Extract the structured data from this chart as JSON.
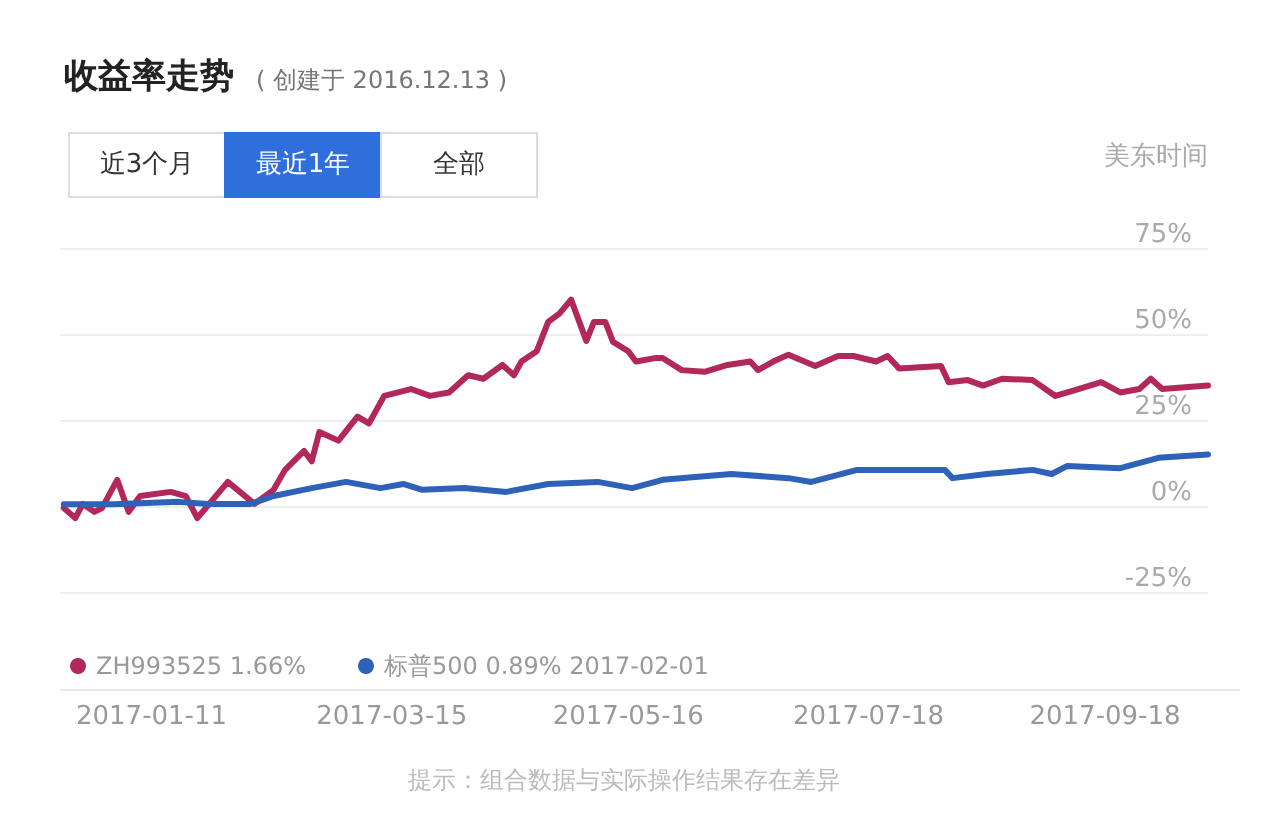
{
  "chart_data": {
    "type": "line",
    "title": "收益率走势",
    "subtitle": "( 创建于 2016.12.13 )",
    "annotations": [
      "近3个月",
      "最近1年",
      "全部",
      "美东时间",
      "提示：组合数据与实际操作结果存在差异"
    ],
    "xlim": [
      "2016-12-18",
      "2017-10-15"
    ],
    "xticks": [
      "2017-01-11",
      "2017-03-15",
      "2017-05-16",
      "2017-07-18",
      "2017-09-18"
    ],
    "ylim": [
      -25,
      75
    ],
    "yticks": [
      {
        "value": -25,
        "label": "-25%"
      },
      {
        "value": 0,
        "label": "0%"
      },
      {
        "value": 25,
        "label": "25%"
      },
      {
        "value": 50,
        "label": "50%"
      },
      {
        "value": 75,
        "label": "75%"
      }
    ],
    "grid": "y",
    "legend": "bottom",
    "marker": "none",
    "line_style": "solid",
    "series": [
      {
        "name": "ZH993525 1.66%",
        "color": "#b3285a",
        "x": [
          "2016-12-19",
          "2016-12-22",
          "2016-12-24",
          "2016-12-27",
          "2016-12-29",
          "2017-01-02",
          "2017-01-05",
          "2017-01-08",
          "2017-01-16",
          "2017-01-20",
          "2017-01-23",
          "2017-01-31",
          "2017-02-07",
          "2017-02-12",
          "2017-02-15",
          "2017-02-20",
          "2017-02-22",
          "2017-02-24",
          "2017-03-01",
          "2017-03-06",
          "2017-03-09",
          "2017-03-13",
          "2017-03-20",
          "2017-03-25",
          "2017-03-30",
          "2017-04-04",
          "2017-04-08",
          "2017-04-13",
          "2017-04-16",
          "2017-04-18",
          "2017-04-22",
          "2017-04-25",
          "2017-04-28",
          "2017-05-01",
          "2017-05-05",
          "2017-05-07",
          "2017-05-10",
          "2017-05-12",
          "2017-05-16",
          "2017-05-18",
          "2017-05-23",
          "2017-05-25",
          "2017-05-30",
          "2017-06-05",
          "2017-06-11",
          "2017-06-17",
          "2017-06-19",
          "2017-06-23",
          "2017-06-27",
          "2017-07-04",
          "2017-07-10",
          "2017-07-14",
          "2017-07-20",
          "2017-07-23",
          "2017-07-26",
          "2017-08-06",
          "2017-08-08",
          "2017-08-13",
          "2017-08-17",
          "2017-08-22",
          "2017-08-30",
          "2017-09-05",
          "2017-09-11",
          "2017-09-17",
          "2017-09-22",
          "2017-09-27",
          "2017-09-30",
          "2017-10-03",
          "2017-10-15"
        ],
        "values": [
          -0.6,
          -3.5,
          0.6,
          -1.7,
          -0.6,
          7.6,
          -1.7,
          2.9,
          4.1,
          2.9,
          -3.5,
          7,
          0.6,
          4.7,
          10.5,
          16,
          13,
          21.5,
          19,
          26,
          24,
          32,
          34,
          32,
          33,
          38,
          37,
          41,
          38,
          42,
          45,
          53.5,
          56,
          60,
          48,
          53.5,
          53.5,
          47.7,
          45,
          42,
          43,
          43,
          39.5,
          39,
          41,
          42,
          39.5,
          42,
          44,
          40.7,
          43.6,
          43.6,
          42,
          43.6,
          40,
          40.7,
          36,
          36.6,
          35,
          37,
          36.6,
          32,
          34,
          36,
          33,
          34,
          37,
          34,
          35
        ]
      },
      {
        "name": "标普500 0.89% 2017-02-01",
        "color": "#2e62b8",
        "x": [
          "2016-12-19",
          "2017-01-01",
          "2017-01-18",
          "2017-01-26",
          "2017-02-06",
          "2017-02-12",
          "2017-02-22",
          "2017-03-03",
          "2017-03-12",
          "2017-03-18",
          "2017-03-23",
          "2017-04-03",
          "2017-04-14",
          "2017-04-25",
          "2017-05-08",
          "2017-05-17",
          "2017-05-25",
          "2017-06-12",
          "2017-06-27",
          "2017-07-03",
          "2017-07-15",
          "2017-08-07",
          "2017-08-09",
          "2017-08-18",
          "2017-08-30",
          "2017-09-04",
          "2017-09-08",
          "2017-09-22",
          "2017-10-02",
          "2017-10-15"
        ],
        "values": [
          0.5,
          0.5,
          1.2,
          0.6,
          0.6,
          2.9,
          5.2,
          7,
          5.2,
          6.4,
          4.7,
          5.2,
          4.1,
          6.4,
          7,
          5.2,
          7.6,
          9.3,
          8.1,
          7,
          10.5,
          10.5,
          8.1,
          9.3,
          10.5,
          9.3,
          11.6,
          11,
          14,
          15
        ]
      }
    ]
  }
}
